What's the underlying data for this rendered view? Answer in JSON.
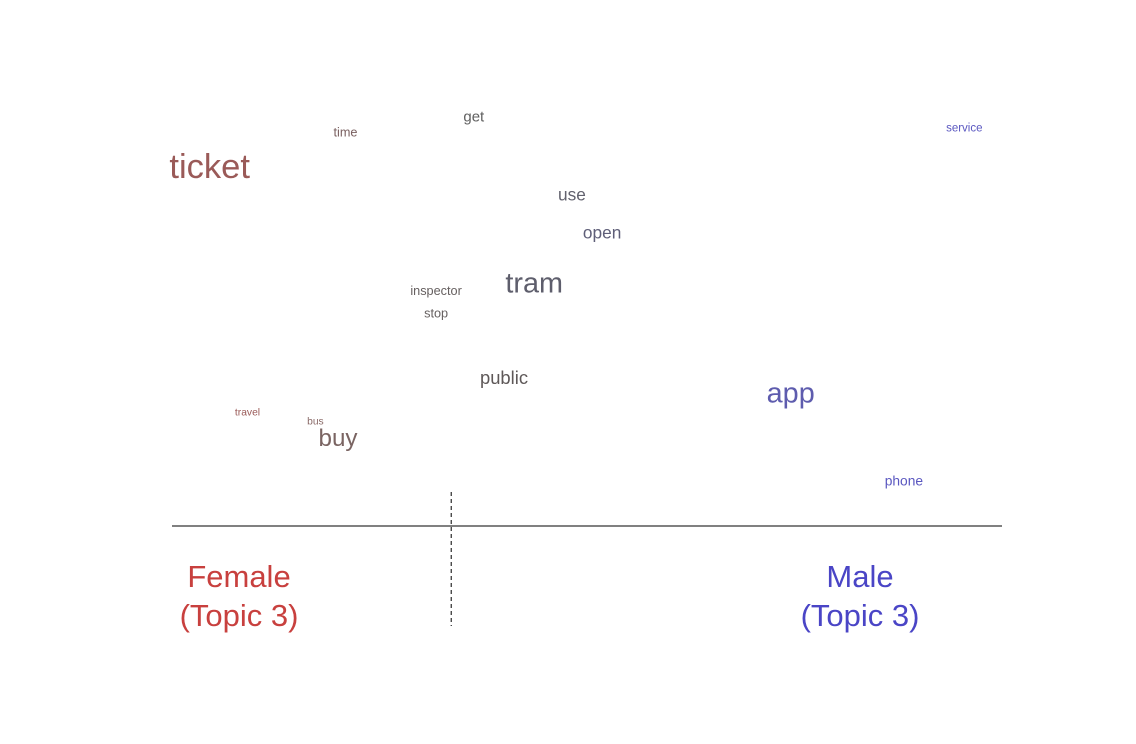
{
  "chart_data": {
    "type": "scatter",
    "subtype": "word-difference-plot",
    "title": "",
    "xlabel": "",
    "ylabel": "",
    "groups": [
      {
        "label_line1": "Female",
        "label_line2": "(Topic 3)",
        "color": "#c8403e"
      },
      {
        "label_line1": "Male",
        "label_line2": "(Topic 3)",
        "color": "#4a45c6"
      }
    ],
    "words": [
      {
        "text": "service",
        "x": 1.0,
        "y": 1.0,
        "weight": 1.0,
        "color": "#5a57c0"
      },
      {
        "text": "get",
        "x": 0.35,
        "y": 1.05,
        "weight": 1.3,
        "color": "#606060"
      },
      {
        "text": "time",
        "x": 0.18,
        "y": 0.98,
        "weight": 1.1,
        "color": "#7a6060"
      },
      {
        "text": "ticket",
        "x": 0.0,
        "y": 0.82,
        "weight": 3.0,
        "color": "#9a5a58"
      },
      {
        "text": "use",
        "x": 0.48,
        "y": 0.7,
        "weight": 1.5,
        "color": "#62626e"
      },
      {
        "text": "open",
        "x": 0.52,
        "y": 0.53,
        "weight": 1.5,
        "color": "#5e5e78"
      },
      {
        "text": "tram",
        "x": 0.43,
        "y": 0.3,
        "weight": 2.5,
        "color": "#5e5e6c"
      },
      {
        "text": "inspector",
        "x": 0.3,
        "y": 0.27,
        "weight": 1.1,
        "color": "#666060"
      },
      {
        "text": "stop",
        "x": 0.3,
        "y": 0.17,
        "weight": 1.1,
        "color": "#666060"
      },
      {
        "text": "public",
        "x": 0.39,
        "y": -0.12,
        "weight": 1.6,
        "color": "#5e5858"
      },
      {
        "text": "app",
        "x": 0.77,
        "y": -0.19,
        "weight": 2.5,
        "color": "#5e5cae"
      },
      {
        "text": "travel",
        "x": 0.05,
        "y": -0.27,
        "weight": 0.9,
        "color": "#9a5a58"
      },
      {
        "text": "bus",
        "x": 0.14,
        "y": -0.31,
        "weight": 0.9,
        "color": "#8a6a68"
      },
      {
        "text": "buy",
        "x": 0.17,
        "y": -0.39,
        "weight": 2.1,
        "color": "#7a6462"
      },
      {
        "text": "phone",
        "x": 0.92,
        "y": -0.58,
        "weight": 1.2,
        "color": "#5a57c0"
      }
    ],
    "xlim": [
      -0.05,
      1.05
    ],
    "ylim": [
      -0.75,
      1.15
    ],
    "divider_x": 0.32,
    "grid": false,
    "legend": "bottom"
  }
}
